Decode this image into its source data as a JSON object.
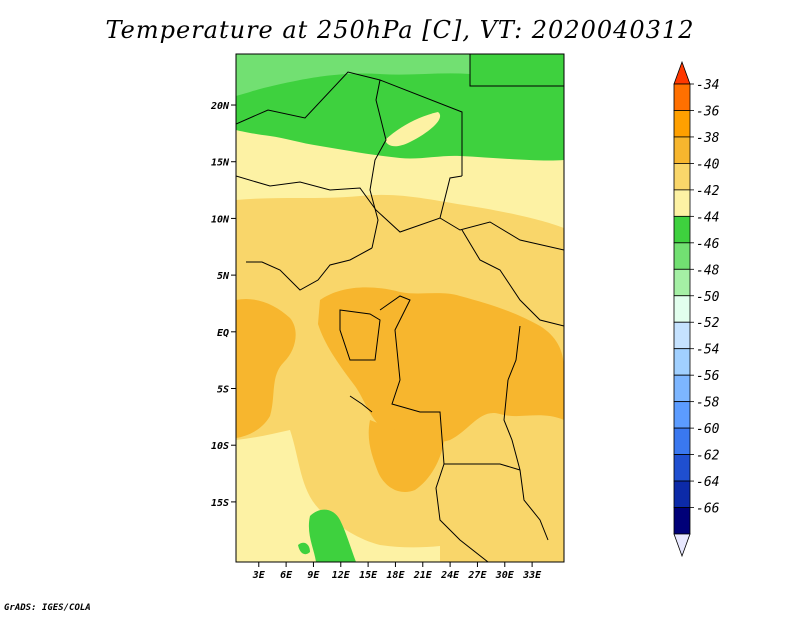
{
  "title": "Temperature at 250hPa [C], VT: 2020040312",
  "credit": "GrADS: IGES/COLA",
  "map": {
    "lat_labels": [
      "20N",
      "15N",
      "10N",
      "5N",
      "EQ",
      "5S",
      "10S",
      "15S"
    ],
    "lon_labels": [
      "3E",
      "6E",
      "9E",
      "12E",
      "15E",
      "18E",
      "21E",
      "24E",
      "27E",
      "30E",
      "33E"
    ],
    "lat_values": [
      20,
      15,
      10,
      5,
      0,
      -5,
      -10,
      -15
    ],
    "lon_values": [
      3,
      6,
      9,
      12,
      15,
      18,
      21,
      24,
      27,
      30,
      33
    ]
  },
  "colorbar": {
    "labels": [
      "-34",
      "-36",
      "-38",
      "-40",
      "-42",
      "-44",
      "-46",
      "-48",
      "-50",
      "-52",
      "-54",
      "-56",
      "-58",
      "-60",
      "-62",
      "-64",
      "-66"
    ],
    "colors": [
      "#ff3800",
      "#ff7000",
      "#ffa000",
      "#f7b62e",
      "#f9d66a",
      "#fdf2a4",
      "#3ed13e",
      "#72e072",
      "#a5f0a5",
      "#e2ffee",
      "#c5e2ff",
      "#a1d0ff",
      "#7db6ff",
      "#5c9cff",
      "#3a78f0",
      "#1f4fd0",
      "#0c2aa8",
      "#000078",
      "#e8e8ff"
    ]
  }
}
